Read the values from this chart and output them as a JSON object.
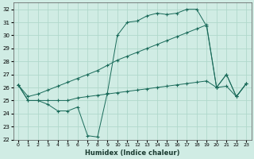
{
  "xlabel": "Humidex (Indice chaleur)",
  "xlim": [
    -0.5,
    23.5
  ],
  "ylim": [
    22,
    32.5
  ],
  "yticks": [
    22,
    23,
    24,
    25,
    26,
    27,
    28,
    29,
    30,
    31,
    32
  ],
  "xticks": [
    0,
    1,
    2,
    3,
    4,
    5,
    6,
    7,
    8,
    9,
    10,
    11,
    12,
    13,
    14,
    15,
    16,
    17,
    18,
    19,
    20,
    21,
    22,
    23
  ],
  "bg_color": "#d0ece4",
  "grid_color": "#b0d8cc",
  "line_color": "#1a6b5a",
  "line1_x": [
    0,
    1,
    2,
    3,
    4,
    5,
    6,
    7,
    8,
    9,
    10,
    11,
    12,
    13,
    14,
    15,
    16,
    17,
    18,
    19,
    20,
    21,
    22,
    23
  ],
  "line1_y": [
    26.2,
    25.0,
    25.0,
    24.7,
    24.2,
    24.2,
    24.5,
    22.3,
    22.2,
    25.6,
    30.0,
    31.0,
    31.1,
    31.5,
    31.7,
    31.6,
    31.7,
    32.0,
    32.0,
    30.7,
    26.0,
    27.0,
    25.3,
    26.3
  ],
  "line2_x": [
    0,
    1,
    2,
    3,
    4,
    5,
    6,
    7,
    8,
    9,
    10,
    11,
    12,
    13,
    14,
    15,
    16,
    17,
    18,
    19,
    20,
    21,
    22,
    23
  ],
  "line2_y": [
    26.2,
    25.0,
    25.0,
    25.0,
    25.0,
    25.0,
    25.2,
    25.3,
    25.4,
    25.5,
    25.6,
    25.7,
    25.8,
    25.9,
    26.0,
    26.1,
    26.2,
    26.3,
    26.4,
    26.5,
    26.0,
    26.1,
    25.3,
    26.3
  ],
  "line3_x": [
    0,
    1,
    2,
    3,
    4,
    5,
    6,
    7,
    8,
    9,
    10,
    11,
    12,
    13,
    14,
    15,
    16,
    17,
    18,
    19,
    20,
    21,
    22,
    23
  ],
  "line3_y": [
    26.2,
    25.3,
    25.5,
    25.8,
    26.1,
    26.4,
    26.7,
    27.0,
    27.3,
    27.7,
    28.1,
    28.4,
    28.7,
    29.0,
    29.3,
    29.6,
    29.9,
    30.2,
    30.5,
    30.8,
    26.0,
    27.0,
    25.3,
    26.3
  ]
}
